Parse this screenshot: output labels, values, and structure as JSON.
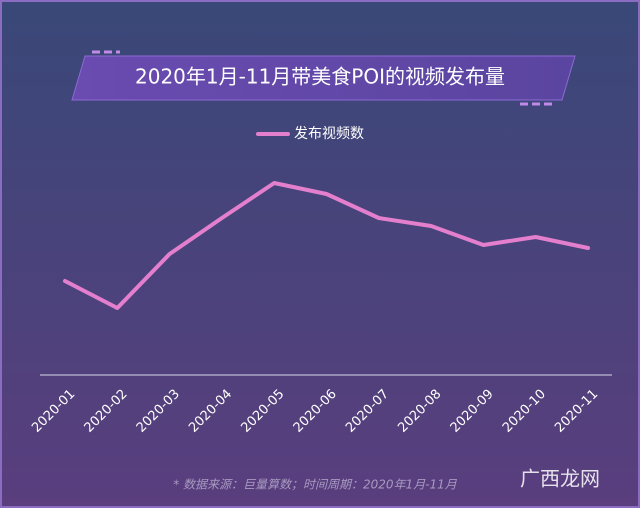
{
  "chart_data": {
    "type": "line",
    "title": "2020年1月-11月带美食POI的视频发布量",
    "categories": [
      "2020-01",
      "2020-02",
      "2020-03",
      "2020-04",
      "2020-05",
      "2020-06",
      "2020-07",
      "2020-08",
      "2020-09",
      "2020-10",
      "2020-11"
    ],
    "series": [
      {
        "name": "发布视频数",
        "color": "#e47fce",
        "values": [
          94,
          67,
          121,
          157,
          192,
          181,
          157,
          149,
          130,
          138,
          127
        ]
      }
    ],
    "ylim": [
      0,
      200
    ],
    "source": "* 数据来源：巨量算数；时间周期：2020年1月-11月",
    "watermark": "广西龙网"
  }
}
